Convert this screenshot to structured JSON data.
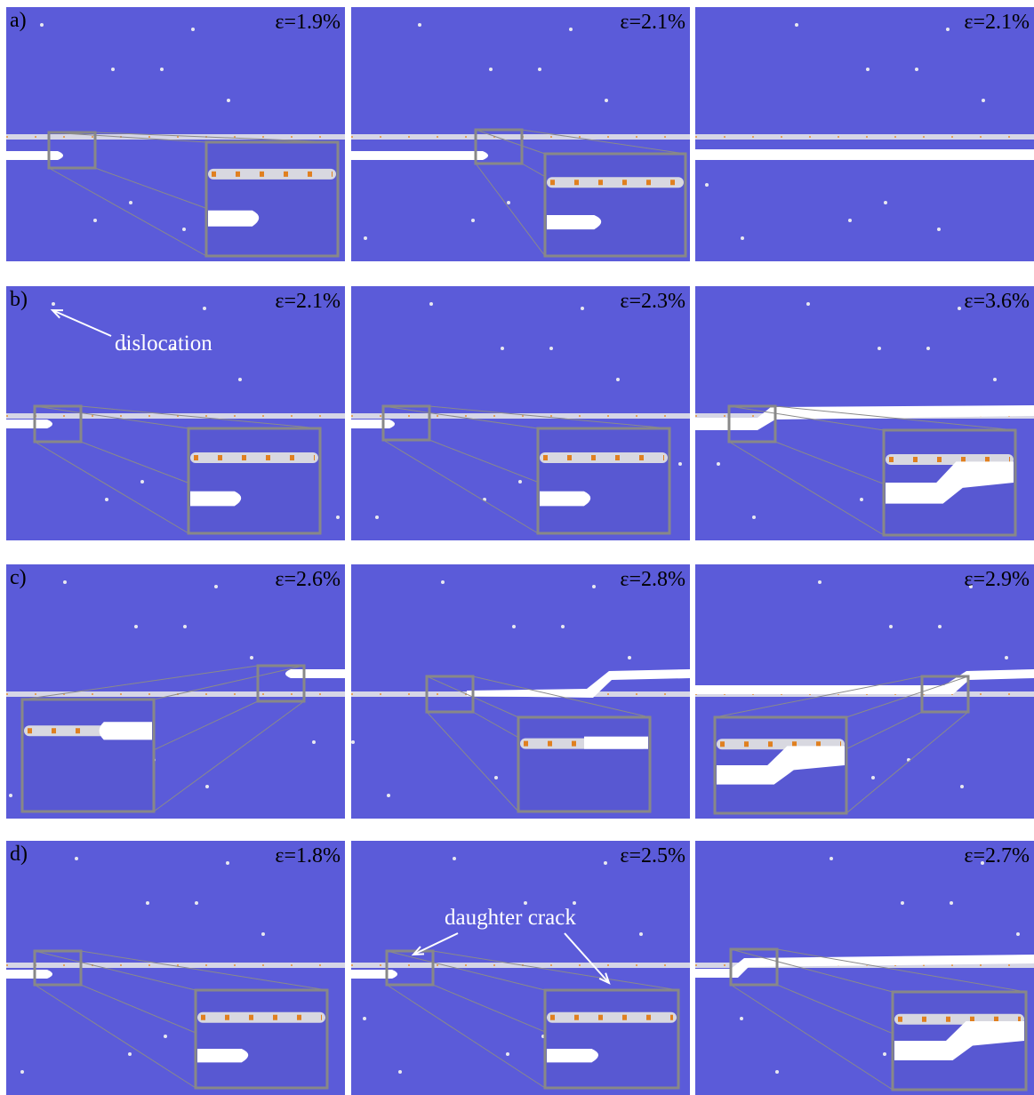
{
  "rows": [
    {
      "label": "a)",
      "panels": [
        {
          "strain": "ε=1.9%"
        },
        {
          "strain": "ε=2.1%"
        },
        {
          "strain": "ε=2.1%"
        }
      ]
    },
    {
      "label": "b)",
      "panels": [
        {
          "strain": "ε=2.1%"
        },
        {
          "strain": "ε=2.3%"
        },
        {
          "strain": "ε=3.6%"
        }
      ]
    },
    {
      "label": "c)",
      "panels": [
        {
          "strain": "ε=2.6%"
        },
        {
          "strain": "ε=2.8%"
        },
        {
          "strain": "ε=2.9%"
        }
      ]
    },
    {
      "label": "d)",
      "panels": [
        {
          "strain": "ε=1.8%"
        },
        {
          "strain": "ε=2.5%"
        },
        {
          "strain": "ε=2.7%"
        }
      ]
    }
  ],
  "annotations": {
    "dislocation": "dislocation",
    "daughter_crack": "daughter crack"
  }
}
